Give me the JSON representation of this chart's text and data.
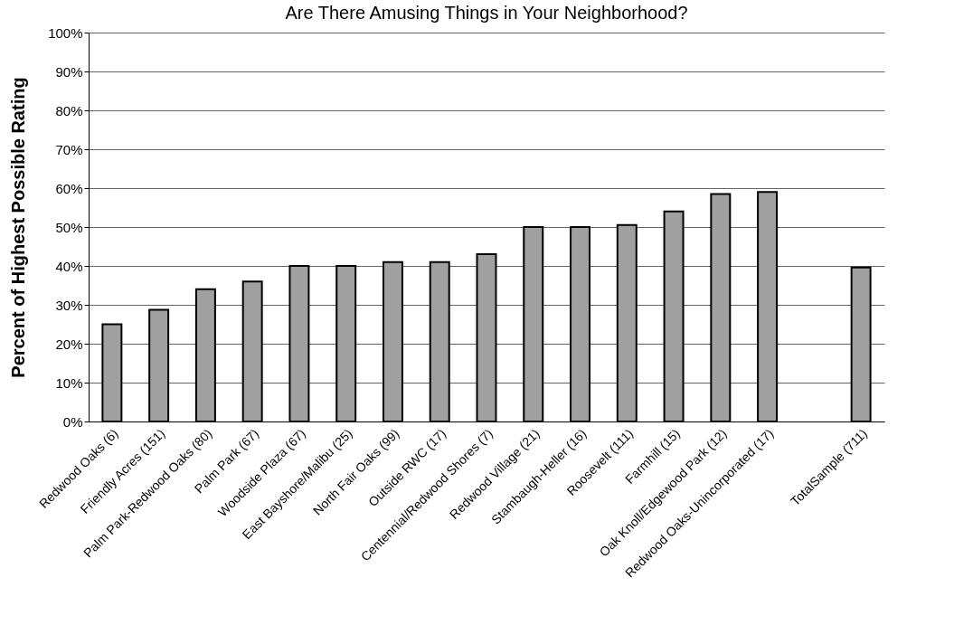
{
  "chart_data": {
    "type": "bar",
    "title": "Are There Amusing Things in Your Neighborhood?",
    "ylabel": "Percent of Highest Possible Rating",
    "categories": [
      "Redwood Oaks (6)",
      "Friendly Acres (151)",
      "Palm Park-Redwood Oaks (80)",
      "Palm Park (67)",
      "Woodside Plaza (67)",
      "East Bayshore/Malibu (25)",
      "North Fair Oaks (99)",
      "Outside RWC (17)",
      "Centennial/Redwood Shores (7)",
      "Redwood Village (21)",
      "Stambaugh-Heller (16)",
      "Roosevelt (111)",
      "Farmhill (15)",
      "Oak Knoll/Edgewood Park (12)",
      "Redwood Oaks-Unincorporated (17)",
      null,
      "TotalSample (711)"
    ],
    "values": [
      25,
      28.7,
      34,
      36,
      40,
      40,
      41,
      41,
      43,
      50,
      50,
      50.5,
      54,
      58.5,
      59,
      null,
      39.6
    ],
    "color": "#a0a0a0",
    "ylim": [
      0,
      100
    ],
    "yticks": [
      {
        "value": 0,
        "label": "0%"
      },
      {
        "value": 10,
        "label": "10%"
      },
      {
        "value": 20,
        "label": "20%"
      },
      {
        "value": 30,
        "label": "30%"
      },
      {
        "value": 40,
        "label": "40%"
      },
      {
        "value": 50,
        "label": "50%"
      },
      {
        "value": 60,
        "label": "60%"
      },
      {
        "value": 70,
        "label": "70%"
      },
      {
        "value": 80,
        "label": "80%"
      },
      {
        "value": 90,
        "label": "90%"
      },
      {
        "value": 100,
        "label": "100%"
      }
    ],
    "grid": "y"
  }
}
